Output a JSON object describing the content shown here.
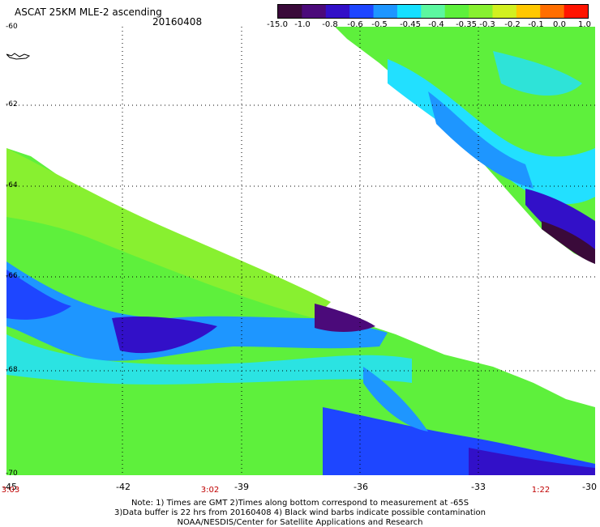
{
  "header": {
    "title": "ASCAT 25KM MLE-2 ascending",
    "date": "20160408"
  },
  "colorbar": {
    "labels": [
      "-15.0",
      "-1.0",
      "-0.8",
      "-0.6",
      "-0.5",
      "-0.45",
      "-0.4",
      "-0.35",
      "-0.3",
      "-0.2",
      "-0.1",
      "0.0",
      "1.0"
    ],
    "colors": [
      "#3a0a3a",
      "#4b0a7a",
      "#3210c8",
      "#1e46ff",
      "#1e96ff",
      "#16e0ff",
      "#5cf7a0",
      "#5ef03c",
      "#88f030",
      "#d2f020",
      "#ffc800",
      "#ff6e00",
      "#ff1400"
    ]
  },
  "map": {
    "y_axis_labels": [
      "-60",
      "-62",
      "-64",
      "-66",
      "-68",
      "-70"
    ],
    "x_axis_labels": [
      "-45",
      "-42",
      "-39",
      "-36",
      "-33",
      "-30"
    ],
    "time_labels": [
      "3:03",
      "3:02",
      "1:22"
    ],
    "grid": true
  },
  "footer": {
    "note_line1": "Note: 1) Times are GMT 2)Times along bottom correspond to measurement at -65S",
    "note_line2": "3)Data buffer is 22 hrs from 20160408 4) Black wind barbs indicate possible contamination",
    "note_line3": "NOAA/NESDIS/Center for Satellite Applications and Research"
  }
}
